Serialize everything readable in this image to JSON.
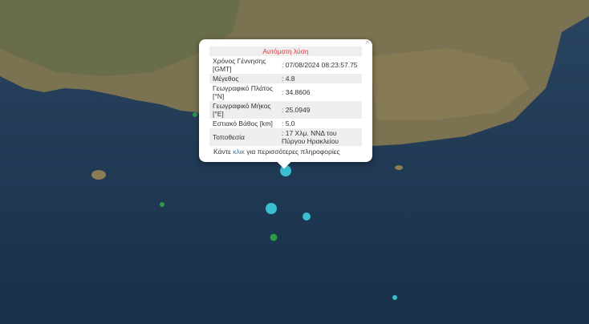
{
  "popup": {
    "title": "Αυτόματη λύση",
    "close_label": "×",
    "rows": [
      {
        "label": "Χρόνος Γέννησης [GMT]",
        "value": ": 07/08/2024 08:23:57.75"
      },
      {
        "label": "Μέγεθος",
        "value": ": 4.8"
      },
      {
        "label": "Γεωγραφικό Πλάτος [°N]",
        "value": ": 34.8606"
      },
      {
        "label": "Γεωγραφικό Μήκος [°E]",
        "value": ": 25.0949"
      },
      {
        "label": "Εστιακό Βάθος [km]",
        "value": ": 5.0"
      },
      {
        "label": "Τοποθεσία",
        "value": ": 17 Χλμ. ΝΝΔ του Πύργου Ηρακλείου"
      }
    ],
    "more_prefix": "Κάντε ",
    "more_link": "κλικ",
    "more_suffix": " για περισσότερες πληροφορίες"
  },
  "colors": {
    "sea": "#1d3550",
    "land": "#7a7250",
    "recent": "#3bbfd0",
    "older": "#2e9a4a",
    "popup_title": "#e8363b"
  }
}
